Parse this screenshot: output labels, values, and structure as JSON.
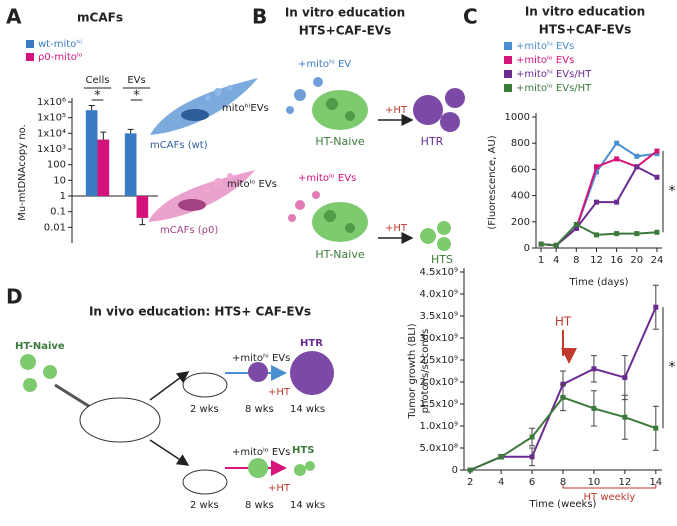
{
  "figure": {
    "panel_labels": [
      "A",
      "B",
      "C",
      "D"
    ],
    "a_diagram": {
      "wt_label": "mitoʰⁱEVs",
      "wt_name": "mCAFs (wt)",
      "rho_label": "mitoˡᵒ EVs",
      "rho_name": "mCAFs (ρ0)"
    },
    "b_diagram": {
      "title": [
        "In vitro education",
        "HTS+CAF-EVs"
      ],
      "top_ev": "+mitoʰⁱ EV",
      "top_ht": "+HT",
      "top_naive": "HT-Naive",
      "top_result": "HTR",
      "bottom_ev": "+mitoˡᵒ EVs",
      "bottom_ht": "+HT",
      "bottom_naive": "HT-Naive",
      "bottom_result": "HTS"
    },
    "d_diagram": {
      "title": "In vivo education: HTS+ CAF-EVs",
      "naive": "HT-Naive",
      "top_ev": "+mitoʰⁱ EVs",
      "top_result": "HTR",
      "top_t1": "2 wks",
      "top_t2": "8 wks",
      "top_ht": "+HT",
      "top_t3": "14 wks",
      "bottom_ev": "+mitoˡᵒ EVs",
      "bottom_result": "HTS",
      "bottom_t1": "2 wks",
      "bottom_t2": "8 wks",
      "bottom_ht": "+HT",
      "bottom_t3": "14 wks"
    }
  },
  "chart_data": [
    {
      "type": "bar",
      "title": "mCAFs",
      "ylabel": "Mu-mtDNAcopy no.",
      "log_scale": true,
      "categories": [
        "Cells",
        "EVs"
      ],
      "series": [
        {
          "name": "wt-mitoʰⁱ",
          "color": "#3a7cc4",
          "values": [
            300000,
            10000
          ],
          "errors": [
            300000,
            8000
          ]
        },
        {
          "name": "ρ0-mitoˡᵒ",
          "color": "#d4127c",
          "values": [
            4000,
            0.04
          ],
          "errors": [
            8000,
            0.025
          ]
        }
      ],
      "ylim": [
        0.001,
        1000000
      ],
      "yticks": [
        0.01,
        0.1,
        1,
        10,
        100,
        {
          "value": 1000,
          "label": "1x10³"
        },
        {
          "value": 10000,
          "label": "1x10⁴"
        },
        {
          "value": 100000,
          "label": "1x10⁵"
        },
        {
          "value": 1000000,
          "label": "1x10⁶"
        }
      ],
      "annotations": [
        "*",
        "*"
      ]
    },
    {
      "type": "line",
      "title": [
        "In vitro education",
        "HTS+CAF-EVs"
      ],
      "ylabel": "(Fluorescence, AU)",
      "xlabel": "Time (days)",
      "x": [
        1,
        4,
        8,
        12,
        16,
        20,
        24
      ],
      "series": [
        {
          "name": "+mitoʰⁱ EVs",
          "color": "#4a8fcf",
          "values": [
            30,
            20,
            150,
            580,
            800,
            700,
            720
          ]
        },
        {
          "name": "+mitoˡᵒ EVs",
          "color": "#d6157a",
          "values": [
            30,
            20,
            150,
            620,
            680,
            620,
            740
          ]
        },
        {
          "name": "+mitoʰⁱ EVs/HT",
          "color": "#6a2c91",
          "values": [
            30,
            20,
            150,
            350,
            350,
            620,
            540
          ]
        },
        {
          "name": "+mitoˡᵒ EVs/HT",
          "color": "#3c7a3c",
          "values": [
            30,
            20,
            180,
            100,
            110,
            110,
            120
          ]
        }
      ],
      "xlim": [
        0,
        25
      ],
      "xticks": [
        1,
        4,
        8,
        12,
        16,
        20,
        24
      ],
      "ylim": [
        0,
        1000
      ],
      "yticks": [
        0,
        200,
        400,
        600,
        800,
        1000
      ],
      "legend": "top",
      "annotations": [
        "*"
      ]
    },
    {
      "type": "line",
      "ylabel": [
        "Tumor growth (BLI)",
        "photons/seconds"
      ],
      "xlabel": "Time (weeks)",
      "x": [
        2,
        4,
        6,
        8,
        10,
        12,
        14
      ],
      "series": [
        {
          "color": "#6a2c91",
          "values": [
            0,
            300000000,
            300000000,
            1950000000,
            2300000000,
            2100000000,
            3700000000
          ],
          "errors": [
            0,
            50000000,
            200000000,
            300000000,
            300000000,
            500000000,
            500000000
          ]
        },
        {
          "color": "#3c7a3c",
          "values": [
            0,
            300000000,
            750000000,
            1650000000,
            1400000000,
            1200000000,
            950000000
          ],
          "errors": [
            0,
            50000000,
            200000000,
            300000000,
            400000000,
            500000000,
            500000000
          ]
        }
      ],
      "xlim": [
        1.6,
        14.4
      ],
      "xticks": [
        2,
        4,
        6,
        8,
        10,
        12,
        14
      ],
      "ylim": [
        0,
        4500000000
      ],
      "yticks": [
        0,
        {
          "value": 500000000,
          "label": "5.0x10⁸"
        },
        {
          "value": 1000000000,
          "label": "1.0x10⁹"
        },
        {
          "value": 1500000000,
          "label": "1.5x10⁹"
        },
        {
          "value": 2000000000,
          "label": "2.0x10⁹"
        },
        {
          "value": 2500000000,
          "label": "2.5x10⁹"
        },
        {
          "value": 3000000000,
          "label": "3.0x10⁹"
        },
        {
          "value": 3500000000,
          "label": "3.5x10⁹"
        },
        {
          "value": 4000000000,
          "label": "4.0x10⁹"
        },
        {
          "value": 4500000000,
          "label": "4.5x10⁹"
        }
      ],
      "annotations": [
        {
          "text": "HT",
          "x": 8
        },
        {
          "text": "HT weekly",
          "x": [
            8,
            14
          ]
        },
        {
          "text": "*"
        }
      ]
    }
  ]
}
